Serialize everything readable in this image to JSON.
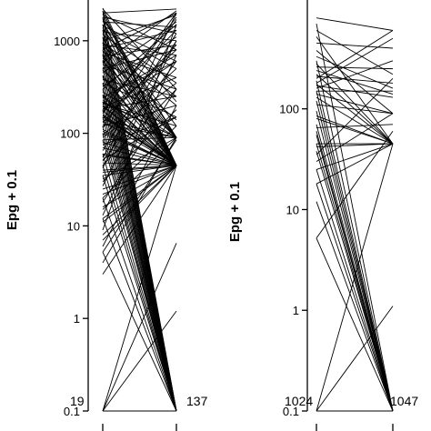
{
  "chart_data": [
    {
      "type": "line",
      "panel": "left",
      "ylabel": "Epg + 0.1",
      "y_scale": "log",
      "ylim": [
        0.1,
        2300
      ],
      "y_ticks": [
        0.1,
        1,
        10,
        100,
        1000
      ],
      "y_tick_labels": [
        "0.1",
        "1",
        "10",
        "100",
        "1000"
      ],
      "x_positions": 2,
      "counts": [
        "19",
        "137"
      ],
      "pairs": [
        [
          0.1,
          0.1
        ],
        [
          0.1,
          1.2
        ],
        [
          0.1,
          6.5
        ],
        [
          0.1,
          45
        ],
        [
          5.2,
          0.1
        ],
        [
          5.2,
          85
        ],
        [
          12,
          0.1
        ],
        [
          12,
          45
        ],
        [
          20,
          0.1
        ],
        [
          20,
          120
        ],
        [
          35,
          0.1
        ],
        [
          35,
          45
        ],
        [
          45,
          0.1
        ],
        [
          45,
          300
        ],
        [
          60,
          0.1
        ],
        [
          60,
          45
        ],
        [
          85,
          0.1
        ],
        [
          85,
          90
        ],
        [
          100,
          0.1
        ],
        [
          100,
          45
        ],
        [
          120,
          0.1
        ],
        [
          120,
          200
        ],
        [
          150,
          0.1
        ],
        [
          150,
          45
        ],
        [
          180,
          0.1
        ],
        [
          180,
          600
        ],
        [
          220,
          0.1
        ],
        [
          220,
          90
        ],
        [
          260,
          0.1
        ],
        [
          260,
          45
        ],
        [
          300,
          0.1
        ],
        [
          300,
          1500
        ],
        [
          350,
          0.1
        ],
        [
          350,
          150
        ],
        [
          420,
          0.1
        ],
        [
          420,
          45
        ],
        [
          500,
          0.1
        ],
        [
          500,
          800
        ],
        [
          600,
          0.1
        ],
        [
          600,
          90
        ],
        [
          700,
          0.1
        ],
        [
          700,
          45
        ],
        [
          800,
          0.1
        ],
        [
          800,
          2000
        ],
        [
          950,
          0.1
        ],
        [
          950,
          250
        ],
        [
          1100,
          0.1
        ],
        [
          1100,
          45
        ],
        [
          1300,
          0.1
        ],
        [
          1300,
          500
        ],
        [
          1500,
          0.1
        ],
        [
          1500,
          90
        ],
        [
          1800,
          0.1
        ],
        [
          1800,
          1200
        ],
        [
          2100,
          0.1
        ],
        [
          2100,
          45
        ],
        [
          8,
          45
        ],
        [
          15,
          90
        ],
        [
          25,
          45
        ],
        [
          30,
          180
        ],
        [
          40,
          45
        ],
        [
          50,
          600
        ],
        [
          55,
          1000
        ],
        [
          70,
          45
        ],
        [
          75,
          150
        ],
        [
          90,
          350
        ],
        [
          110,
          45
        ],
        [
          130,
          900
        ],
        [
          140,
          90
        ],
        [
          160,
          45
        ],
        [
          170,
          1800
        ],
        [
          190,
          400
        ],
        [
          200,
          45
        ],
        [
          210,
          120
        ],
        [
          240,
          700
        ],
        [
          250,
          45
        ],
        [
          280,
          90
        ],
        [
          320,
          1100
        ],
        [
          340,
          45
        ],
        [
          380,
          250
        ],
        [
          400,
          45
        ],
        [
          450,
          1600
        ],
        [
          480,
          90
        ],
        [
          520,
          45
        ],
        [
          550,
          300
        ],
        [
          580,
          2100
        ],
        [
          620,
          45
        ],
        [
          650,
          140
        ],
        [
          680,
          900
        ],
        [
          720,
          45
        ],
        [
          750,
          400
        ],
        [
          780,
          90
        ],
        [
          820,
          1300
        ],
        [
          850,
          45
        ],
        [
          880,
          200
        ],
        [
          900,
          700
        ],
        [
          980,
          45
        ],
        [
          1000,
          1900
        ],
        [
          1050,
          90
        ],
        [
          1150,
          350
        ],
        [
          1200,
          45
        ],
        [
          1250,
          1000
        ],
        [
          1350,
          120
        ],
        [
          1400,
          45
        ],
        [
          1450,
          600
        ],
        [
          1600,
          1400
        ],
        [
          1650,
          45
        ],
        [
          1700,
          220
        ],
        [
          1750,
          90
        ],
        [
          1900,
          800
        ],
        [
          1950,
          45
        ],
        [
          2000,
          2200
        ],
        [
          2200,
          300
        ],
        [
          2250,
          45
        ],
        [
          3,
          45
        ],
        [
          4,
          90
        ],
        [
          6,
          200
        ],
        [
          7,
          45
        ],
        [
          9,
          1500
        ],
        [
          11,
          45
        ],
        [
          13,
          700
        ],
        [
          16,
          45
        ],
        [
          18,
          300
        ],
        [
          22,
          45
        ],
        [
          27,
          1000
        ],
        [
          32,
          90
        ],
        [
          38,
          45
        ],
        [
          42,
          2000
        ],
        [
          48,
          45
        ],
        [
          52,
          150
        ],
        [
          58,
          45
        ],
        [
          65,
          1200
        ],
        [
          80,
          45
        ],
        [
          95,
          500
        ],
        [
          105,
          45
        ],
        [
          115,
          1700
        ],
        [
          125,
          90
        ],
        [
          135,
          45
        ],
        [
          145,
          800
        ],
        [
          155,
          45
        ],
        [
          165,
          2000
        ],
        [
          175,
          45
        ],
        [
          185,
          250
        ],
        [
          195,
          45
        ],
        [
          205,
          1300
        ],
        [
          215,
          90
        ],
        [
          230,
          45
        ],
        [
          245,
          600
        ]
      ]
    },
    {
      "type": "line",
      "panel": "right",
      "ylabel": "Epg + 0.1",
      "y_scale": "log",
      "ylim": [
        0.1,
        900
      ],
      "y_ticks": [
        0.1,
        1,
        10,
        100
      ],
      "y_tick_labels": [
        "0.1",
        "1",
        "10",
        "100"
      ],
      "x_positions": 2,
      "counts": [
        "1024",
        "1047"
      ],
      "pairs": [
        [
          0.1,
          0.1
        ],
        [
          0.1,
          45
        ],
        [
          0.1,
          1.1
        ],
        [
          5.2,
          0.1
        ],
        [
          5.2,
          60
        ],
        [
          12,
          0.1
        ],
        [
          18,
          0.1
        ],
        [
          18,
          45
        ],
        [
          25,
          0.1
        ],
        [
          30,
          90
        ],
        [
          38,
          0.1
        ],
        [
          42,
          45
        ],
        [
          45,
          45
        ],
        [
          45,
          0.1
        ],
        [
          60,
          0.1
        ],
        [
          70,
          0.1
        ],
        [
          80,
          45
        ],
        [
          95,
          0.1
        ],
        [
          110,
          90
        ],
        [
          130,
          45
        ],
        [
          150,
          0.1
        ],
        [
          160,
          300
        ],
        [
          175,
          45
        ],
        [
          190,
          0.1
        ],
        [
          200,
          600
        ],
        [
          220,
          45
        ],
        [
          260,
          250
        ],
        [
          300,
          0.1
        ],
        [
          380,
          90
        ],
        [
          450,
          400
        ],
        [
          520,
          45
        ],
        [
          600,
          220
        ],
        [
          700,
          0.1
        ],
        [
          800,
          600
        ],
        [
          150,
          150
        ],
        [
          170,
          130
        ],
        [
          210,
          180
        ],
        [
          240,
          140
        ],
        [
          280,
          45
        ],
        [
          330,
          160
        ],
        [
          25,
          45
        ],
        [
          35,
          200
        ],
        [
          55,
          0.1
        ],
        [
          65,
          70
        ],
        [
          85,
          45
        ],
        [
          120,
          0.1
        ],
        [
          140,
          90
        ],
        [
          180,
          500
        ]
      ]
    }
  ]
}
